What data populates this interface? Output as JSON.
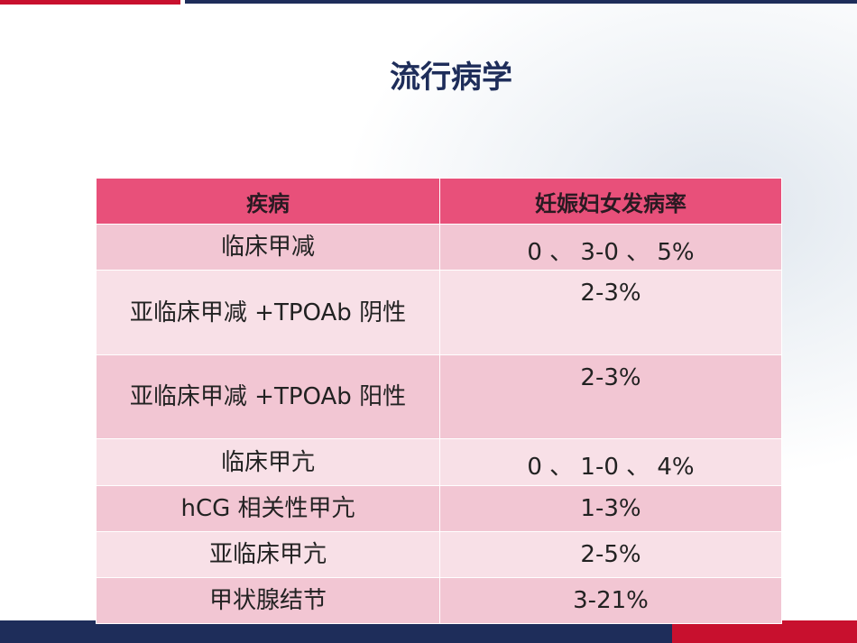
{
  "title": "流行病学",
  "table": {
    "header": [
      "疾病",
      "妊娠妇女发病率"
    ],
    "rows": [
      [
        "临床甲减",
        "0 、 3-0 、 5%"
      ],
      [
        "亚临床甲减 +TPOAb 阴性",
        "2-3%"
      ],
      [
        "亚临床甲减 +TPOAb 阳性",
        "2-3%"
      ],
      [
        "临床甲亢",
        "0 、 1-0 、 4%"
      ],
      [
        "hCG 相关性甲亢",
        "1-3%"
      ],
      [
        "亚临床甲亢",
        "2-5%"
      ],
      [
        "甲状腺结节",
        "3-21%"
      ]
    ]
  }
}
